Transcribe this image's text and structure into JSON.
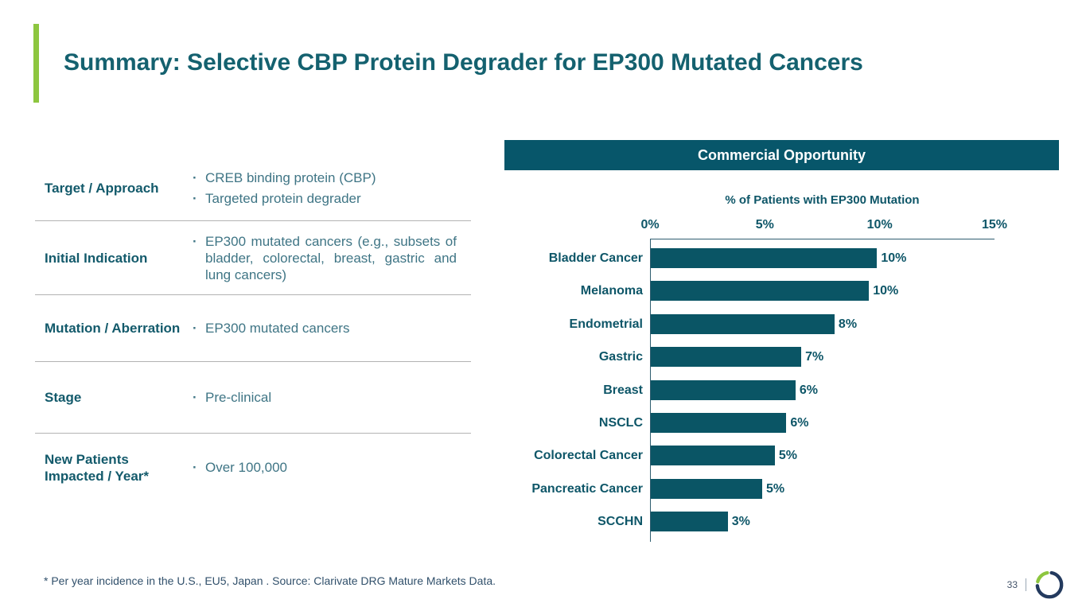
{
  "slide": {
    "title": "Summary: Selective CBP Protein Degrader for EP300 Mutated Cancers",
    "footnote": "* Per year incidence in the U.S., EU5, Japan . Source: Clarivate DRG Mature Markets Data.",
    "page_number": "33"
  },
  "summary_table": {
    "rows": [
      {
        "label": "Target / Approach",
        "bullets": [
          "CREB binding protein (CBP)",
          "Targeted protein degrader"
        ]
      },
      {
        "label": "Initial Indication",
        "bullets": [
          "EP300 mutated cancers (e.g., subsets of bladder, colorectal, breast, gastric and lung cancers)"
        ]
      },
      {
        "label": "Mutation / Aberration",
        "bullets": [
          "EP300 mutated cancers"
        ]
      },
      {
        "label": "Stage",
        "bullets": [
          "Pre-clinical"
        ]
      },
      {
        "label": "New Patients Impacted / Year*",
        "bullets": [
          "Over 100,000"
        ]
      }
    ]
  },
  "chart_panel": {
    "header": "Commercial Opportunity"
  },
  "chart_data": {
    "type": "bar",
    "orientation": "horizontal",
    "title": "% of Patients with EP300 Mutation",
    "categories": [
      "Bladder Cancer",
      "Melanoma",
      "Endometrial",
      "Gastric",
      "Breast",
      "NSCLC",
      "Colorectal Cancer",
      "Pancreatic Cancer",
      "SCCHN"
    ],
    "values": [
      10,
      10,
      8,
      7,
      6,
      6,
      5,
      5,
      3
    ],
    "value_labels": [
      "10%",
      "10%",
      "8%",
      "7%",
      "6%",
      "6%",
      "5%",
      "5%",
      "3%"
    ],
    "bar_lengths_pct": [
      9.85,
      9.5,
      8.0,
      6.55,
      6.3,
      5.9,
      5.4,
      4.85,
      3.35
    ],
    "x_ticks": [
      {
        "value": 0,
        "label": "0%"
      },
      {
        "value": 5,
        "label": "5%"
      },
      {
        "value": 10,
        "label": "10%"
      },
      {
        "value": 15,
        "label": "15%"
      }
    ],
    "xlim": [
      0,
      15
    ],
    "grid": false,
    "legend": false,
    "bar_color": "#0a5565"
  },
  "colors": {
    "accent_green": "#8dc63f",
    "teal_dark": "#07566a",
    "bar_teal": "#0a5565",
    "title_teal": "#14616f",
    "body_text": "#3f7585",
    "footer_text": "#31506b",
    "divider_gray": "#b3b3b3",
    "logo_navy": "#233a5e"
  }
}
